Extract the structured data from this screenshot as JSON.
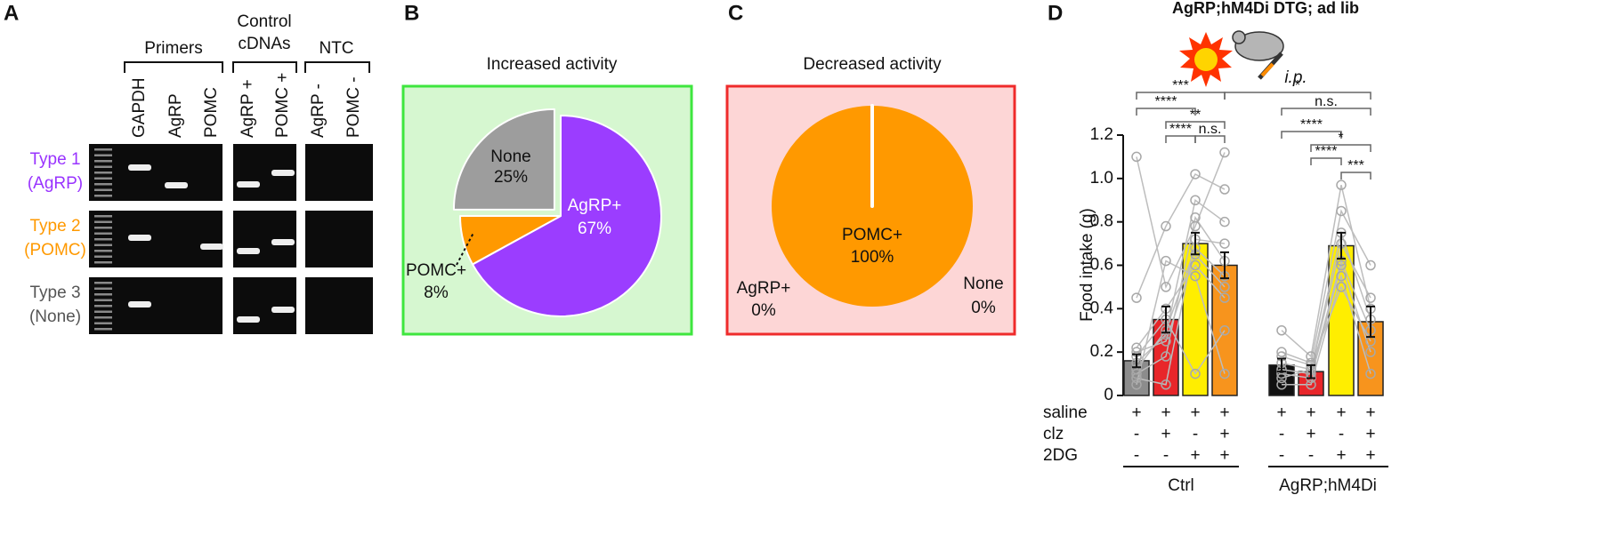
{
  "panel_labels": [
    "A",
    "B",
    "C",
    "D"
  ],
  "panel_a": {
    "column_groups": [
      [
        "Primers"
      ],
      [
        "Control",
        "cDNAs"
      ],
      [
        "NTC"
      ]
    ],
    "lanes": [
      "GAPDH",
      "AgRP",
      "POMC",
      "AgRP +",
      "POMC +",
      "AgRP -",
      "POMC -"
    ],
    "rows": [
      {
        "name": "Type 1",
        "type": "(AgRP)",
        "color": "#9933ff"
      },
      {
        "name": "Type 2",
        "type": "(POMC)",
        "color": "#ff9900"
      },
      {
        "name": "Type 3",
        "type": "(None)",
        "color": "#555555"
      }
    ]
  },
  "chart_data": [
    {
      "type": "pie",
      "title": "Increased activity",
      "categories": [
        "AgRP+",
        "POMC+",
        "None"
      ],
      "values": [
        67,
        8,
        25
      ],
      "value_labels": [
        "67%",
        "8%",
        "25%"
      ],
      "colors": [
        "#9b3dff",
        "#ff9900",
        "#9d9d9d"
      ],
      "explode": [
        false,
        false,
        true
      ],
      "background": "#d6f7d0",
      "border": "#3ee63e"
    },
    {
      "type": "pie",
      "title": "Decreased activity",
      "categories": [
        "AgRP+",
        "POMC+",
        "None"
      ],
      "values": [
        0,
        100,
        0
      ],
      "value_labels": [
        "0%",
        "100%",
        "0%"
      ],
      "colors": [
        "#ff9900",
        "#ff9900",
        "#ff9900"
      ],
      "explode": [
        false,
        false,
        false
      ],
      "background": "#fdd6d6",
      "border": "#ef2b2b"
    },
    {
      "type": "bar",
      "title": "AgRP;hM4Di DTG; ad lib",
      "annotation": "i.p.",
      "ylabel": "Food intake (g)",
      "categories": [
        null,
        null,
        null,
        null,
        null,
        null,
        null,
        null
      ],
      "values": [
        0.16,
        0.35,
        0.7,
        0.6,
        0.14,
        0.11,
        0.69,
        0.34
      ],
      "errors": [
        0.03,
        0.06,
        0.05,
        0.06,
        0.03,
        0.03,
        0.06,
        0.07
      ],
      "colors": [
        "#8c8c8c",
        "#e8262a",
        "#ffee00",
        "#f7941d",
        "#111111",
        "#e8262a",
        "#ffee00",
        "#f7941d"
      ],
      "ylim": [
        0,
        1.2
      ],
      "yticks": [
        0,
        0.2,
        0.4,
        0.6,
        0.8,
        {
          "value": 1,
          "label": "1.0"
        },
        1.2
      ],
      "groups": [
        "Ctrl",
        "AgRP;hM4Di"
      ],
      "treatments": [
        {
          "name": "saline",
          "marks": [
            "+",
            "+",
            "+",
            "+",
            "+",
            "+",
            "+",
            "+"
          ]
        },
        {
          "name": "clz",
          "marks": [
            "-",
            "+",
            "-",
            "+",
            "-",
            "+",
            "-",
            "+"
          ]
        },
        {
          "name": "2DG",
          "marks": [
            "-",
            "-",
            "+",
            "+",
            "-",
            "-",
            "+",
            "+"
          ]
        }
      ],
      "points": [
        [
          [
            0.12,
            0.3,
            0.68,
            0.55
          ],
          [
            0.45,
            0.78,
            1.02,
            0.95
          ],
          [
            0.1,
            0.18,
            0.82,
            0.62
          ],
          [
            0.22,
            0.4,
            0.6,
            0.45
          ],
          [
            0.08,
            0.05,
            0.72,
            0.7
          ],
          [
            0.15,
            0.28,
            0.9,
            0.8
          ],
          [
            0.05,
            0.62,
            0.55,
            0.1
          ],
          [
            0.18,
            0.35,
            0.1,
            0.3
          ],
          [
            1.1,
            0.5,
            0.78,
            1.12
          ],
          [
            0.2,
            0.25,
            0.65,
            0.5
          ]
        ],
        [
          [
            0.3,
            0.18,
            0.97,
            0.4
          ],
          [
            0.1,
            0.08,
            0.6,
            0.2
          ],
          [
            0.15,
            0.12,
            0.75,
            0.35
          ],
          [
            0.05,
            0.05,
            0.55,
            0.1
          ],
          [
            0.2,
            0.15,
            0.85,
            0.6
          ],
          [
            0.12,
            0.1,
            0.62,
            0.3
          ],
          [
            0.08,
            0.12,
            0.7,
            0.45
          ],
          [
            0.18,
            0.14,
            0.5,
            0.25
          ]
        ]
      ],
      "significance": [
        {
          "label": "***",
          "from": 0,
          "to": 3
        },
        {
          "label": "*",
          "from": 3,
          "to": 7
        },
        {
          "label": "****",
          "from": 0,
          "to": 2
        },
        {
          "label": "n.s.",
          "from": 4,
          "to": 7
        },
        {
          "label": "**",
          "from": 1,
          "to": 3
        },
        {
          "label": "****",
          "from": 1,
          "to": 2
        },
        {
          "label": "n.s.",
          "from": 2,
          "to": 3
        },
        {
          "label": "****",
          "from": 4,
          "to": 6
        },
        {
          "label": "*",
          "from": 5,
          "to": 7
        },
        {
          "label": "****",
          "from": 5,
          "to": 6
        },
        {
          "label": "***",
          "from": 6,
          "to": 7
        }
      ]
    }
  ]
}
